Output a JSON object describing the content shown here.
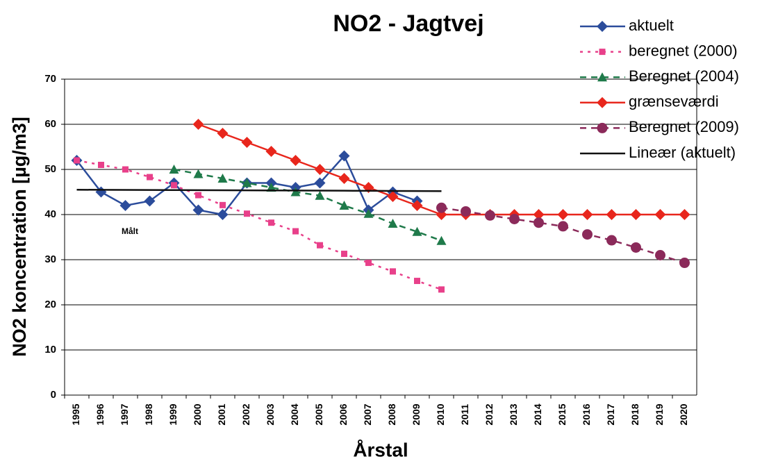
{
  "chart_data": {
    "type": "line",
    "title": "NO2 - Jagtvej",
    "x_label": "Årstal",
    "y_label": "NO2 koncentration [µg/m3]",
    "annotation": "Målt",
    "categories": [
      "1995",
      "1996",
      "1997",
      "1998",
      "1999",
      "2000",
      "2001",
      "2002",
      "2003",
      "2004",
      "2005",
      "2006",
      "2007",
      "2008",
      "2009",
      "2010",
      "2011",
      "2012",
      "2013",
      "2014",
      "2015",
      "2016",
      "2017",
      "2018",
      "2019",
      "2020"
    ],
    "ylim": [
      0,
      70
    ],
    "yticks": [
      0,
      10,
      20,
      30,
      40,
      50,
      60,
      70
    ],
    "grid": true,
    "series": [
      {
        "name": "aktuelt",
        "color": "#2b4c9b",
        "marker": "diamond",
        "dash": "solid",
        "values": [
          52,
          45,
          42,
          43,
          47,
          41,
          40,
          47,
          47,
          46,
          47,
          53,
          41,
          45,
          43,
          null,
          null,
          null,
          null,
          null,
          null,
          null,
          null,
          null,
          null,
          null
        ]
      },
      {
        "name": "beregnet (2000)",
        "color": "#e8408a",
        "marker": "square",
        "dash": "dotted",
        "values": [
          52,
          51,
          50,
          48.3,
          46.5,
          44.3,
          42.1,
          40.2,
          38.2,
          36.3,
          33.2,
          31.3,
          29.3,
          27.4,
          25.3,
          23.4,
          null,
          null,
          null,
          null,
          null,
          null,
          null,
          null,
          null,
          null
        ]
      },
      {
        "name": "Beregnet (2004)",
        "color": "#1f7a4a",
        "marker": "triangle",
        "dash": "dashed",
        "values": [
          null,
          null,
          null,
          null,
          50,
          49,
          48,
          47,
          46,
          45,
          44.2,
          42,
          40.2,
          38,
          36.2,
          34.2,
          null,
          null,
          null,
          null,
          null,
          null,
          null,
          null,
          null,
          null
        ]
      },
      {
        "name": "grænseværdi",
        "color": "#e8261c",
        "marker": "diamond",
        "dash": "solid",
        "values": [
          null,
          null,
          null,
          null,
          null,
          60,
          58,
          56,
          54,
          52,
          50,
          48,
          46,
          44,
          42,
          40,
          40,
          40,
          40,
          40,
          40,
          40,
          40,
          40,
          40,
          40
        ]
      },
      {
        "name": "Beregnet (2009)",
        "color": "#8b2a5a",
        "marker": "circle",
        "dash": "dashed",
        "values": [
          null,
          null,
          null,
          null,
          null,
          null,
          null,
          null,
          null,
          null,
          null,
          null,
          null,
          null,
          null,
          41.5,
          40.7,
          39.8,
          39,
          38.2,
          37.4,
          35.6,
          34.3,
          32.7,
          31,
          29.3
        ]
      },
      {
        "name": "Lineær (aktuelt)",
        "color": "#111111",
        "marker": "none",
        "dash": "solid",
        "values": [
          45.5,
          45.48,
          45.46,
          45.44,
          45.42,
          45.4,
          45.38,
          45.36,
          45.34,
          45.32,
          45.3,
          45.28,
          45.26,
          45.24,
          45.22,
          45.2,
          null,
          null,
          null,
          null,
          null,
          null,
          null,
          null,
          null,
          null
        ]
      }
    ]
  }
}
